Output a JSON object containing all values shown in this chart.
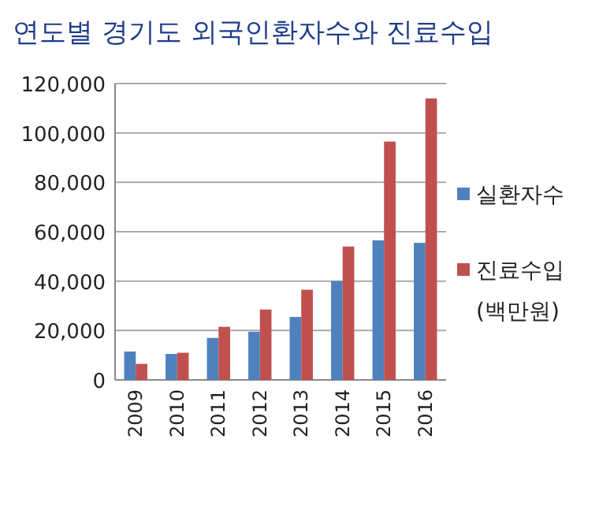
{
  "chart_data": {
    "type": "bar",
    "title": "연도별 경기도 외국인환자수와 진료수입",
    "categories": [
      "2009",
      "2010",
      "2011",
      "2012",
      "2013",
      "2014",
      "2015",
      "2016"
    ],
    "series": [
      {
        "name": "실환자수",
        "color": "#4f81bd",
        "values": [
          11500,
          10500,
          17000,
          19500,
          25500,
          40000,
          56500,
          55500
        ]
      },
      {
        "name": "진료수입 (백만원)",
        "color": "#c0504d",
        "values": [
          6500,
          11000,
          21500,
          28500,
          36500,
          54000,
          96500,
          114000
        ]
      }
    ],
    "ylim": [
      0,
      120000
    ],
    "yticks": [
      0,
      {
        "value": 20000,
        "label": "20,000"
      },
      {
        "value": 40000,
        "label": "40,000"
      },
      {
        "value": 60000,
        "label": "60,000"
      },
      {
        "value": 80000,
        "label": "80,000"
      },
      {
        "value": 100000,
        "label": "100,000"
      },
      {
        "value": 120000,
        "label": "120,000"
      }
    ],
    "grid": "y",
    "legend": "right"
  }
}
